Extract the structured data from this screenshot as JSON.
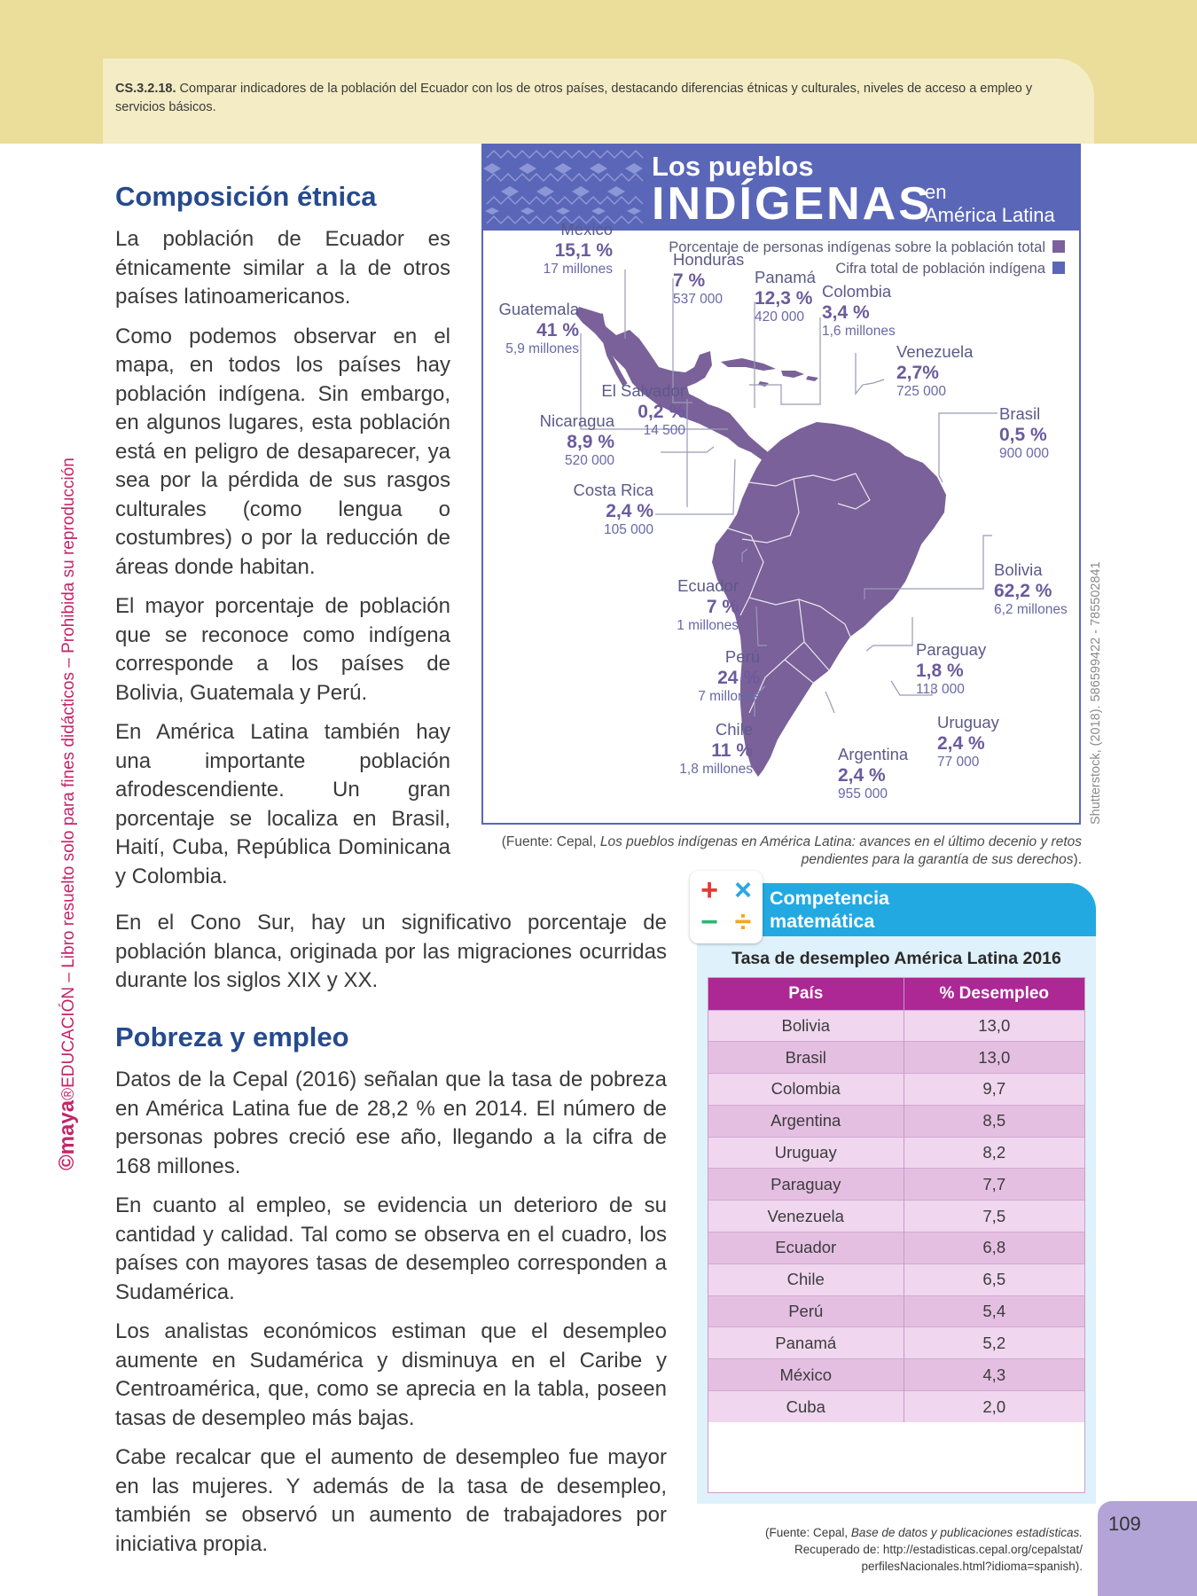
{
  "header": {
    "criterion_code": "CS.3.2.18.",
    "criterion_text": "Comparar indicadores de la población del Ecuador con los de otros países, destacando diferencias étnicas y culturales, niveles de acceso a empleo y servicios básicos."
  },
  "side_text": {
    "brand": "©maya",
    "text": "®EDUCACIÓN – Libro resuelto solo para fines didácticos – Prohibida su reproducción"
  },
  "section1": {
    "title": "Composición étnica",
    "paragraphs": [
      "La población de Ecuador es étnicamente similar a la de otros países latinoamericanos.",
      "Como podemos observar en el mapa, en todos los países hay población indígena. Sin embargo, en algunos lugares, esta población está en peligro de desaparecer, ya sea por la pérdida de sus rasgos culturales (como lengua o costumbres) o por la reducción de áreas donde habitan.",
      "El mayor porcentaje de población que se reconoce como indígena corresponde a los países de Bolivia, Guatemala y Perú.",
      "En América Latina también hay una importante población afrodescendiente. Un gran porcentaje se localiza en Brasil, Haití, Cuba, República Dominicana y Colombia.",
      "En el Cono Sur, hay un significativo porcentaje de población blanca, originada por las migraciones ocurridas durante los siglos XIX y XX."
    ]
  },
  "section2": {
    "title": "Pobreza y empleo",
    "paragraphs": [
      "Datos de la Cepal (2016) señalan que la tasa de pobreza en América Latina fue de 28,2 % en 2014. El número de personas pobres creció ese año, llegando a la cifra de 168 millones.",
      "En cuanto al empleo, se evidencia un deterioro de su cantidad y calidad. Tal como se observa en el cuadro, los países con mayores tasas de desempleo corresponden a Sudamérica.",
      "Los analistas económicos estiman que el desempleo aumente en Sudamérica y disminuya en el Caribe y Centroamérica, que, como se aprecia en la tabla, poseen tasas de desempleo más bajas.",
      "Cabe recalcar que el aumento de desempleo fue mayor en las mujeres. Y además de la tasa de desempleo, también se observó un aumento de trabajadores por iniciativa propia."
    ]
  },
  "map": {
    "title_line1": "Los pueblos",
    "title_line2": "INDÍGENAS",
    "title_line3a": "en",
    "title_line3b": "América Latina",
    "legend_pct": "Porcentaje de personas indígenas sobre la población total",
    "legend_total": "Cifra total de población indígena",
    "colors": {
      "header": "#5a67b8",
      "land": "#7a6199",
      "pct_swatch": "#7a6199",
      "total_swatch": "#5a67b8"
    },
    "countries": [
      {
        "name": "México",
        "pct": "15,1 %",
        "total": "17 millones"
      },
      {
        "name": "Honduras",
        "pct": "7 %",
        "total": "537 000"
      },
      {
        "name": "Panamá",
        "pct": "12,3 %",
        "total": "420 000"
      },
      {
        "name": "Colombia",
        "pct": "3,4 %",
        "total": "1,6 millones"
      },
      {
        "name": "Guatemala",
        "pct": "41 %",
        "total": "5,9 millones"
      },
      {
        "name": "Venezuela",
        "pct": "2,7%",
        "total": "725 000"
      },
      {
        "name": "El Salvador",
        "pct": "0,2 %",
        "total": "14 500"
      },
      {
        "name": "Nicaragua",
        "pct": "8,9 %",
        "total": "520 000"
      },
      {
        "name": "Brasil",
        "pct": "0,5 %",
        "total": "900 000"
      },
      {
        "name": "Costa Rica",
        "pct": "2,4 %",
        "total": "105 000"
      },
      {
        "name": "Bolivia",
        "pct": "62,2 %",
        "total": "6,2 millones"
      },
      {
        "name": "Ecuador",
        "pct": "7 %",
        "total": "1 millones"
      },
      {
        "name": "Paraguay",
        "pct": "1,8 %",
        "total": "113 000"
      },
      {
        "name": "Perú",
        "pct": "24 %",
        "total": "7 millones"
      },
      {
        "name": "Uruguay",
        "pct": "2,4 %",
        "total": "77 000"
      },
      {
        "name": "Chile",
        "pct": "11 %",
        "total": "1,8 millones"
      },
      {
        "name": "Argentina",
        "pct": "2,4 %",
        "total": "955 000"
      }
    ],
    "credit": "Shutterstock, (2018). 586599422 - 785502841",
    "source_prefix": "(Fuente: Cepal, ",
    "source_title": "Los pueblos indígenas en América Latina: avances en el último decenio y retos pendientes para la garantía de sus derechos",
    "source_suffix": ")."
  },
  "math": {
    "header": "Competencia matemática",
    "header_line1": "Competencia",
    "header_line2": "matemática",
    "table_title": "Tasa de desempleo América Latina 2016",
    "col_country": "País",
    "col_rate": "% Desempleo",
    "rows": [
      {
        "country": "Bolivia",
        "rate": "13,0"
      },
      {
        "country": "Brasil",
        "rate": "13,0"
      },
      {
        "country": "Colombia",
        "rate": "9,7"
      },
      {
        "country": "Argentina",
        "rate": "8,5"
      },
      {
        "country": "Uruguay",
        "rate": "8,2"
      },
      {
        "country": "Paraguay",
        "rate": "7,7"
      },
      {
        "country": "Venezuela",
        "rate": "7,5"
      },
      {
        "country": "Ecuador",
        "rate": "6,8"
      },
      {
        "country": "Chile",
        "rate": "6,5"
      },
      {
        "country": "Perú",
        "rate": "5,4"
      },
      {
        "country": "Panamá",
        "rate": "5,2"
      },
      {
        "country": "México",
        "rate": "4,3"
      },
      {
        "country": "Cuba",
        "rate": "2,0"
      }
    ],
    "source_prefix": "(Fuente: Cepal, ",
    "source_title": "Base de datos y publicaciones estadísticas.",
    "source_line2": "Recuperado de: http://estadisticas.cepal.org/cepalstat/",
    "source_line3": "perfilesNacionales.html?idioma=spanish).",
    "icon_symbols": [
      "+",
      "×",
      "−",
      "÷"
    ]
  },
  "page_number": "109"
}
